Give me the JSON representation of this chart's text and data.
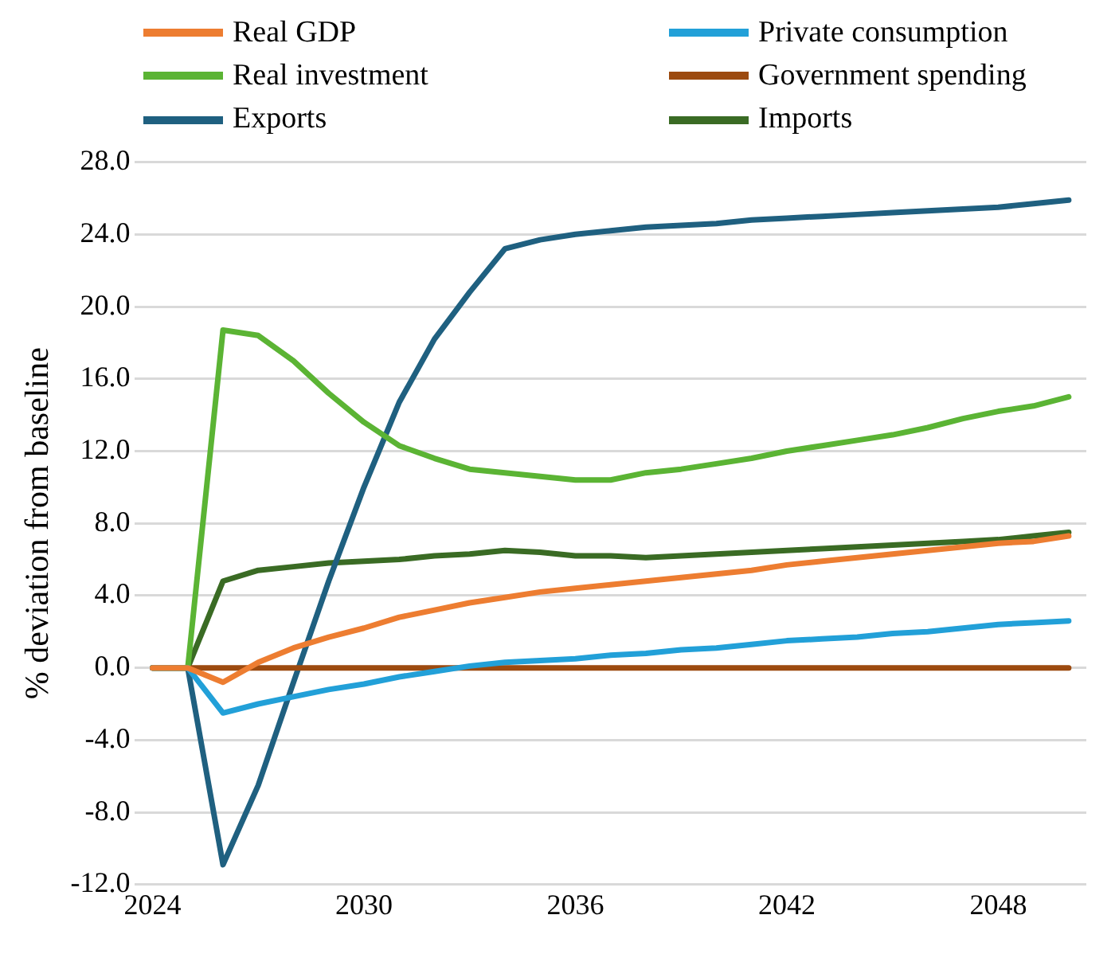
{
  "chart_data": {
    "type": "line",
    "ylabel": "% deviation from baseline",
    "x": [
      2024,
      2025,
      2026,
      2027,
      2028,
      2029,
      2030,
      2031,
      2032,
      2033,
      2034,
      2035,
      2036,
      2037,
      2038,
      2039,
      2040,
      2041,
      2042,
      2043,
      2044,
      2045,
      2046,
      2047,
      2048,
      2049,
      2050
    ],
    "xlim": [
      2023.5,
      2050.5
    ],
    "xticks": [
      2024,
      2030,
      2036,
      2042,
      2048
    ],
    "ylim": [
      -12,
      28
    ],
    "yticks": [
      {
        "value": -12,
        "label": "-12.0"
      },
      {
        "value": -8,
        "label": "-8.0"
      },
      {
        "value": -4,
        "label": "-4.0"
      },
      {
        "value": 0,
        "label": "0.0"
      },
      {
        "value": 4,
        "label": "4.0"
      },
      {
        "value": 8,
        "label": "8.0"
      },
      {
        "value": 12,
        "label": "12.0"
      },
      {
        "value": 16,
        "label": "16.0"
      },
      {
        "value": 20,
        "label": "20.0"
      },
      {
        "value": 24,
        "label": "24.0"
      },
      {
        "value": 28,
        "label": "28.0"
      }
    ],
    "grid": "y",
    "legend": "top",
    "marker": "none",
    "line_style": "solid",
    "series": [
      {
        "name": "Real GDP",
        "color": "#ed7d31",
        "values": [
          0,
          0,
          -0.8,
          0.3,
          1.1,
          1.7,
          2.2,
          2.8,
          3.2,
          3.6,
          3.9,
          4.2,
          4.4,
          4.6,
          4.8,
          5.0,
          5.2,
          5.4,
          5.7,
          5.9,
          6.1,
          6.3,
          6.5,
          6.7,
          6.9,
          7.0,
          7.3
        ]
      },
      {
        "name": "Private consumption",
        "color": "#22a0d8",
        "values": [
          0,
          0,
          -2.5,
          -2.0,
          -1.6,
          -1.2,
          -0.9,
          -0.5,
          -0.2,
          0.1,
          0.3,
          0.4,
          0.5,
          0.7,
          0.8,
          1.0,
          1.1,
          1.3,
          1.5,
          1.6,
          1.7,
          1.9,
          2.0,
          2.2,
          2.4,
          2.5,
          2.6
        ]
      },
      {
        "name": "Real investment",
        "color": "#5bb434",
        "values": [
          0,
          0,
          18.7,
          18.4,
          17.0,
          15.2,
          13.6,
          12.3,
          11.6,
          11.0,
          10.8,
          10.6,
          10.4,
          10.4,
          10.8,
          11.0,
          11.3,
          11.6,
          12.0,
          12.3,
          12.6,
          12.9,
          13.3,
          13.8,
          14.2,
          14.5,
          15.0
        ]
      },
      {
        "name": "Government spending",
        "color": "#9c4a0f",
        "values": [
          0,
          0,
          0,
          0,
          0,
          0,
          0,
          0,
          0,
          0,
          0,
          0,
          0,
          0,
          0,
          0,
          0,
          0,
          0,
          0,
          0,
          0,
          0,
          0,
          0,
          0,
          0
        ]
      },
      {
        "name": "Exports",
        "color": "#1f6080",
        "values": [
          0,
          0,
          -10.9,
          -6.5,
          -0.8,
          4.8,
          10.0,
          14.7,
          18.2,
          20.8,
          23.2,
          23.7,
          24.0,
          24.2,
          24.4,
          24.5,
          24.6,
          24.8,
          24.9,
          25.0,
          25.1,
          25.2,
          25.3,
          25.4,
          25.5,
          25.7,
          25.9
        ]
      },
      {
        "name": "Imports",
        "color": "#3a6b24",
        "values": [
          0,
          0,
          4.8,
          5.4,
          5.6,
          5.8,
          5.9,
          6.0,
          6.2,
          6.3,
          6.5,
          6.4,
          6.2,
          6.2,
          6.1,
          6.2,
          6.3,
          6.4,
          6.5,
          6.6,
          6.7,
          6.8,
          6.9,
          7.0,
          7.1,
          7.3,
          7.5
        ]
      }
    ]
  }
}
